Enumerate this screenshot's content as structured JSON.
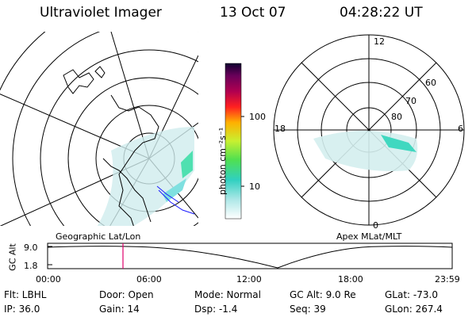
{
  "header": {
    "title": "Ultraviolet Imager",
    "date": "13 Oct 07",
    "time": "04:28:22 UT"
  },
  "colorbar": {
    "unit_label": "photon cm⁻²s⁻¹",
    "ticks": [
      "100",
      "10"
    ]
  },
  "left_panel": {
    "caption": "Geographic Lat/Lon"
  },
  "right_panel": {
    "caption": "Apex MLat/MLT",
    "hour_labels": {
      "top": "12",
      "left": "18",
      "right": "6",
      "bottom": "0"
    },
    "lat_labels": [
      "60",
      "70",
      "80"
    ]
  },
  "altitude_plot": {
    "axis_label": "GC Alt",
    "y_ticks": [
      "9.0",
      "1.8"
    ],
    "time_ticks": [
      "00:00",
      "06:00",
      "12:00",
      "18:00",
      "23:59"
    ],
    "marker_color": "#e0006a"
  },
  "footer": {
    "filter": "Flt: LBHL",
    "door": "Door: Open",
    "mode": "Mode: Normal",
    "gc_alt": "GC Alt: 9.0 Re",
    "glat": "GLat: -73.0",
    "ip": "IP: 36.0",
    "gain": "Gain: 14",
    "dsp": "Dsp:    -1.4",
    "seq": "Seq: 39",
    "glon": "GLon: 267.4"
  }
}
